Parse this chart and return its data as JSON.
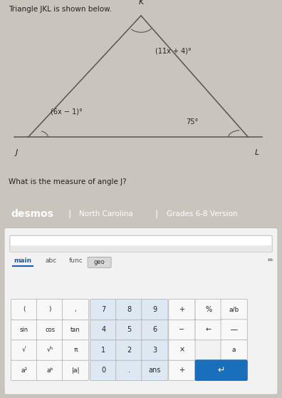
{
  "bg_color": "#cac5bc",
  "title_text": "Triangle JKL is shown below.",
  "question_text": "What is the measure of angle J?",
  "triangle": {
    "J": [
      0.1,
      0.3
    ],
    "K": [
      0.5,
      0.92
    ],
    "L": [
      0.88,
      0.3
    ]
  },
  "angle_J_label": "(6x − 1)°",
  "angle_K_label": "(11x + 4)°",
  "angle_L_label": "75°",
  "vertex_J": [
    0.06,
    0.24
  ],
  "vertex_K": [
    0.5,
    0.97
  ],
  "vertex_L": [
    0.91,
    0.24
  ],
  "desmos_bar_color": "#2d7a3a",
  "desmos_text": "desmos",
  "desmos_nc": "North Carolina",
  "desmos_grades": "Grades 6-8 Version",
  "calc_panel_bg": "#f2f2f2",
  "calc_outer_bg": "#e0e0e0",
  "key_blue_bg": "#dde8f2",
  "key_white_bg": "#f8f8f8",
  "key_enter_bg": "#1a6fbd",
  "key_geo_bg": "#d8d8d8"
}
